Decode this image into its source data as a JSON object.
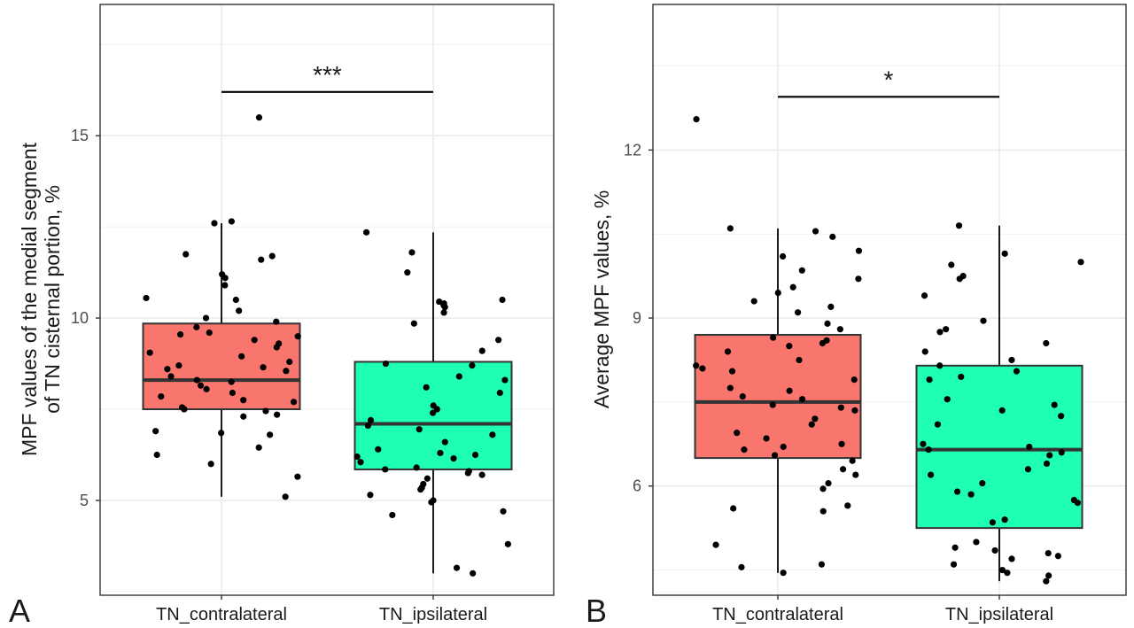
{
  "chart_data": [
    {
      "type": "box",
      "panel_label": "A",
      "ylabel_lines": [
        "MPF values of the medial segment",
        "of TN cisternal portion, %"
      ],
      "xlabel": "",
      "ylim": [
        2.4,
        18.6
      ],
      "yticks": [
        5,
        10,
        15
      ],
      "grid": true,
      "categories": [
        "TN_contralateral",
        "TN_ipsilateral"
      ],
      "colors": [
        "#F8766D",
        "#1FFFB4"
      ],
      "boxes": [
        {
          "category": "TN_contralateral",
          "q1": 7.5,
          "median": 8.3,
          "q3": 9.85,
          "whisker_low": 5.1,
          "whisker_high": 12.6
        },
        {
          "category": "TN_ipsilateral",
          "q1": 5.85,
          "median": 7.1,
          "q3": 8.8,
          "whisker_low": 3.0,
          "whisker_high": 12.35
        }
      ],
      "points": [
        [
          15.5,
          12.65,
          12.6,
          11.75,
          11.7,
          11.6,
          11.2,
          11.1,
          10.9,
          10.55,
          10.5,
          10.2,
          10.0,
          9.9,
          9.75,
          9.6,
          9.55,
          9.5,
          9.4,
          9.3,
          9.2,
          9.05,
          8.95,
          8.8,
          8.7,
          8.65,
          8.6,
          8.55,
          8.4,
          8.3,
          8.25,
          8.15,
          8.05,
          7.95,
          7.85,
          7.75,
          7.7,
          7.55,
          7.5,
          7.45,
          7.35,
          7.3,
          6.9,
          6.85,
          6.8,
          6.45,
          6.25,
          6.0,
          5.65,
          5.1
        ],
        [
          12.35,
          11.8,
          11.25,
          10.5,
          10.45,
          10.4,
          10.35,
          10.3,
          10.15,
          9.85,
          9.4,
          9.1,
          8.75,
          8.7,
          8.4,
          8.3,
          8.1,
          7.95,
          7.6,
          7.5,
          7.4,
          7.2,
          7.05,
          6.95,
          6.8,
          6.6,
          6.4,
          6.3,
          6.25,
          6.2,
          6.15,
          6.05,
          5.9,
          5.85,
          5.8,
          5.75,
          5.7,
          5.6,
          5.45,
          5.35,
          5.3,
          5.15,
          5.0,
          4.95,
          4.7,
          4.6,
          3.8,
          3.15,
          3.0
        ]
      ],
      "significance": {
        "label": "***",
        "y": 16.2
      }
    },
    {
      "type": "box",
      "panel_label": "B",
      "ylabel_lines": [
        "Average MPF values, %"
      ],
      "xlabel": "",
      "ylim": [
        4.05,
        14.6
      ],
      "yticks": [
        6,
        9,
        12
      ],
      "grid": true,
      "categories": [
        "TN_contralateral",
        "TN_ipsilateral"
      ],
      "colors": [
        "#F8766D",
        "#1FFFB4"
      ],
      "boxes": [
        {
          "category": "TN_contralateral",
          "q1": 6.5,
          "median": 7.5,
          "q3": 8.7,
          "whisker_low": 4.45,
          "whisker_high": 10.6
        },
        {
          "category": "TN_ipsilateral",
          "q1": 5.25,
          "median": 6.65,
          "q3": 8.15,
          "whisker_low": 4.3,
          "whisker_high": 10.65
        }
      ],
      "points": [
        [
          12.55,
          10.6,
          10.55,
          10.45,
          10.2,
          10.1,
          9.85,
          9.7,
          9.55,
          9.45,
          9.3,
          9.2,
          9.1,
          8.9,
          8.8,
          8.65,
          8.6,
          8.55,
          8.5,
          8.4,
          8.25,
          8.15,
          8.1,
          8.05,
          7.9,
          7.75,
          7.7,
          7.6,
          7.55,
          7.45,
          7.4,
          7.35,
          7.2,
          7.1,
          6.95,
          6.85,
          6.75,
          6.7,
          6.65,
          6.55,
          6.45,
          6.3,
          6.2,
          6.05,
          5.95,
          5.65,
          5.6,
          5.55,
          4.95,
          4.6,
          4.55,
          4.45
        ],
        [
          10.65,
          10.15,
          10.0,
          9.95,
          9.75,
          9.7,
          9.4,
          8.95,
          8.8,
          8.75,
          8.55,
          8.4,
          8.25,
          8.15,
          8.05,
          7.95,
          7.9,
          7.55,
          7.45,
          7.35,
          7.25,
          7.1,
          6.75,
          6.7,
          6.65,
          6.6,
          6.55,
          6.4,
          6.3,
          6.2,
          6.05,
          5.9,
          5.85,
          5.75,
          5.7,
          5.4,
          5.35,
          5.0,
          4.9,
          4.85,
          4.8,
          4.75,
          4.7,
          4.6,
          4.5,
          4.45,
          4.4,
          4.3
        ]
      ],
      "significance": {
        "label": "*",
        "y": 12.95
      }
    }
  ]
}
